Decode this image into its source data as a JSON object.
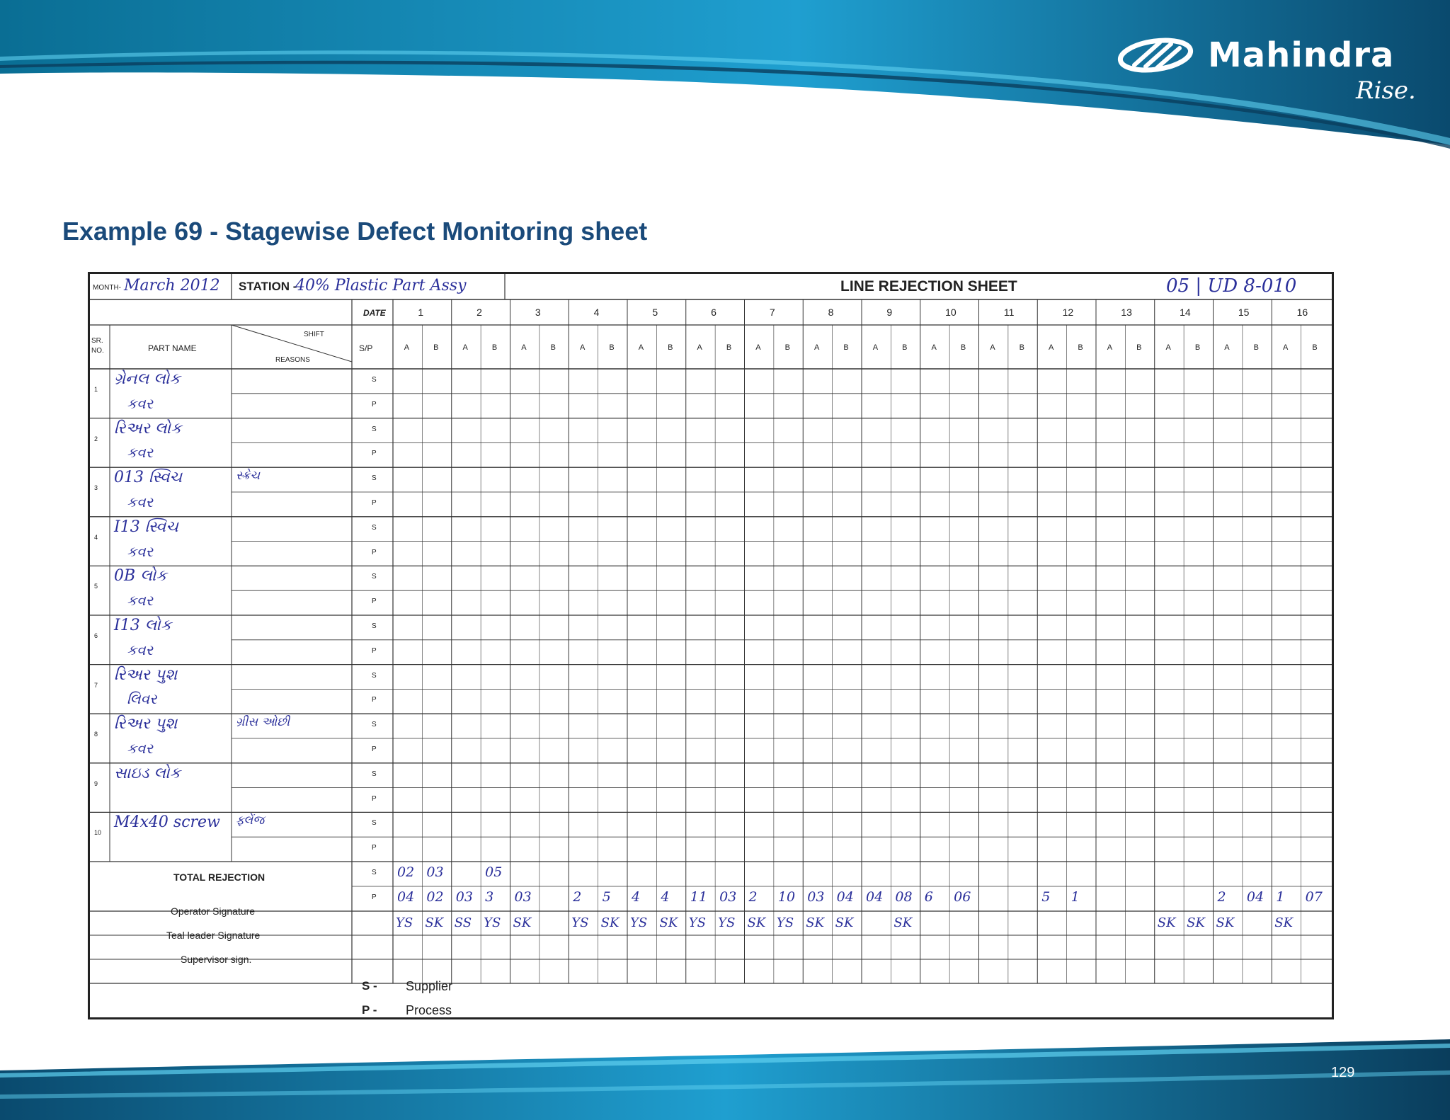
{
  "brand": {
    "name": "Mahindra",
    "tagline": "Rise."
  },
  "page": {
    "title": "Example 69 - Stagewise Defect Monitoring sheet",
    "number": "129"
  },
  "colors": {
    "band_dark": "#0a4a6e",
    "band_light": "#2fb3e0",
    "title": "#1a4a7a",
    "ink": "#2a2f9a"
  },
  "sheet": {
    "month_label": "MONTH-",
    "month_value": "March 2012",
    "station_label": "STATION -",
    "station_value": "40% Plastic Part Assy",
    "title": "LINE REJECTION SHEET",
    "doc_ref": "05 | UD 8-010",
    "date_label": "DATE",
    "dates": [
      "1",
      "2",
      "3",
      "4",
      "5",
      "6",
      "7",
      "8",
      "9",
      "10",
      "11",
      "12",
      "13",
      "14",
      "15",
      "16"
    ],
    "shift_label": "SHIFT",
    "reasons_label": "REASONS",
    "sr_label": "SR. NO.",
    "part_name_label": "PART NAME",
    "sp_label": "S/P",
    "shift_a": "A",
    "shift_b": "B",
    "s_code": "S",
    "p_code": "P",
    "parts": [
      {
        "no": "1",
        "line1": "ગ્રેનલ લોક",
        "line2": "કવર",
        "reason": ""
      },
      {
        "no": "2",
        "line1": "રિઅર લોક",
        "line2": "કવર",
        "reason": ""
      },
      {
        "no": "3",
        "line1": "013 સ્વિચ",
        "line2": "કવર",
        "reason": "સ્ક્રેચ"
      },
      {
        "no": "4",
        "line1": "I13 સ્વિચ",
        "line2": "કવર",
        "reason": ""
      },
      {
        "no": "5",
        "line1": "0B લોક",
        "line2": "કવર",
        "reason": ""
      },
      {
        "no": "6",
        "line1": "I13 લોક",
        "line2": "કવર",
        "reason": ""
      },
      {
        "no": "7",
        "line1": "રિઅર પુશ",
        "line2": "લિવર",
        "reason": ""
      },
      {
        "no": "8",
        "line1": "રિઅર પુશ",
        "line2": "કવર",
        "reason": "ગ્રીસ ઓછી"
      },
      {
        "no": "9",
        "line1": "સાઇડ લોક",
        "line2": "",
        "reason": ""
      },
      {
        "no": "10",
        "line1": "M4x40 screw",
        "line2": "",
        "reason": "ફ્લેંજ"
      }
    ],
    "total_rejection_label": "TOTAL REJECTION",
    "total_s": [
      "02",
      "03",
      "",
      "05",
      "",
      "",
      "",
      "",
      "",
      "",
      "",
      "",
      "",
      "",
      "",
      "",
      "",
      "",
      "",
      "",
      "",
      "",
      "",
      "",
      "",
      "",
      "",
      "",
      "",
      "",
      "",
      ""
    ],
    "total_p": [
      "04",
      "02",
      "03",
      "3",
      "03",
      "",
      "2",
      "5",
      "4",
      "4",
      "11",
      "03",
      "2",
      "10",
      "03",
      "04",
      "04",
      "08",
      "6",
      "06",
      "",
      "",
      "5",
      "1",
      "",
      "",
      "",
      "",
      "2",
      "04",
      "1",
      "07"
    ],
    "operator_signature_label": "Operator Signature",
    "team_leader_signature_label": "Teal leader Signature",
    "supervisor_sign_label": "Supervisor sign.",
    "legend": [
      {
        "code": "S -",
        "meaning": "Supplier"
      },
      {
        "code": "P -",
        "meaning": "Process"
      }
    ],
    "operator_initials": [
      "YS",
      "SK",
      "SS",
      "YS",
      "SK",
      "",
      "YS",
      "SK",
      "YS",
      "SK",
      "YS",
      "YS",
      "SK",
      "YS",
      "SK",
      "SK",
      "",
      "SK",
      "",
      "",
      "",
      "",
      "",
      "",
      "",
      "",
      "SK",
      "SK",
      "SK",
      "",
      "SK",
      ""
    ]
  }
}
